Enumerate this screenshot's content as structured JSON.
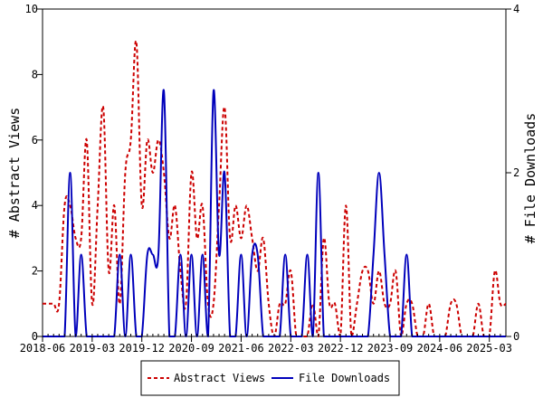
{
  "chart_data": {
    "type": "line",
    "ylabel": "# Abstract Views",
    "y2label": "# File Downloads",
    "ylim": [
      0,
      10
    ],
    "y2lim": [
      0,
      4
    ],
    "yticks": [
      "0",
      "2",
      "4",
      "6",
      "8",
      "10"
    ],
    "y2ticks": [
      "0",
      "2",
      "4"
    ],
    "xticks": [
      "2018-06",
      "2019-03",
      "2019-12",
      "2020-09",
      "2021-06",
      "2022-03",
      "2022-12",
      "2023-09",
      "2024-06",
      "2025-03"
    ],
    "x": [
      "2018-06",
      "2018-07",
      "2018-08",
      "2018-09",
      "2018-10",
      "2018-11",
      "2018-12",
      "2019-01",
      "2019-02",
      "2019-03",
      "2019-04",
      "2019-05",
      "2019-06",
      "2019-07",
      "2019-08",
      "2019-09",
      "2019-10",
      "2019-11",
      "2019-12",
      "2020-01",
      "2020-02",
      "2020-03",
      "2020-04",
      "2020-05",
      "2020-06",
      "2020-07",
      "2020-08",
      "2020-09",
      "2020-10",
      "2020-11",
      "2020-12",
      "2021-01",
      "2021-02",
      "2021-03",
      "2021-04",
      "2021-05",
      "2021-06",
      "2021-07",
      "2021-08",
      "2021-09",
      "2021-10",
      "2021-11",
      "2021-12",
      "2022-01",
      "2022-02",
      "2022-03",
      "2022-04",
      "2022-05",
      "2022-06",
      "2022-07",
      "2022-08",
      "2022-09",
      "2022-10",
      "2022-11",
      "2022-12",
      "2023-01",
      "2023-02",
      "2023-03",
      "2023-04",
      "2023-05",
      "2023-06",
      "2023-07",
      "2023-08",
      "2023-09",
      "2023-10",
      "2023-11",
      "2023-12",
      "2024-01",
      "2024-02",
      "2024-03",
      "2024-04",
      "2024-05",
      "2024-06",
      "2024-07",
      "2024-08",
      "2024-09",
      "2024-10",
      "2024-11",
      "2024-12",
      "2025-01",
      "2025-02",
      "2025-03",
      "2025-04",
      "2025-05",
      "2025-06"
    ],
    "series": [
      {
        "name": "Abstract Views",
        "axis": "left",
        "color": "#cc0000",
        "dash": true,
        "values": [
          1,
          1,
          1,
          1,
          4,
          4,
          3,
          3,
          6,
          1,
          4,
          7,
          2,
          4,
          1,
          5,
          6,
          9,
          4,
          6,
          5,
          6,
          5,
          3,
          4,
          2,
          1,
          5,
          3,
          4,
          1,
          1,
          4,
          7,
          3,
          4,
          3,
          4,
          3,
          2,
          3,
          1,
          0,
          1,
          1,
          2,
          0,
          0,
          0,
          1,
          0,
          3,
          1,
          1,
          0,
          4,
          0,
          1,
          2,
          2,
          1,
          2,
          1,
          1,
          2,
          0,
          1,
          1,
          0,
          0,
          1,
          0,
          0,
          0,
          1,
          1,
          0,
          0,
          0,
          1,
          0,
          0,
          2,
          1,
          1
        ]
      },
      {
        "name": "File Downloads",
        "axis": "right",
        "color": "#0000bb",
        "dash": false,
        "values": [
          0,
          0,
          0,
          0,
          0,
          2,
          0,
          1,
          0,
          0,
          0,
          0,
          0,
          0,
          1,
          0,
          1,
          0,
          0,
          1,
          1,
          1,
          3,
          0,
          0,
          1,
          0,
          1,
          0,
          1,
          0,
          3,
          1,
          2,
          0,
          0,
          1,
          0,
          1,
          1,
          0,
          0,
          0,
          0,
          1,
          0,
          0,
          0,
          1,
          0,
          2,
          0,
          0,
          0,
          0,
          0,
          0,
          0,
          0,
          0,
          1,
          2,
          1,
          0,
          0,
          0,
          1,
          0,
          0,
          0,
          0,
          0,
          0,
          0,
          0,
          0,
          0,
          0,
          0,
          0,
          0,
          0,
          0,
          0,
          0
        ]
      }
    ],
    "legend": "bottom-center",
    "grid": false
  }
}
